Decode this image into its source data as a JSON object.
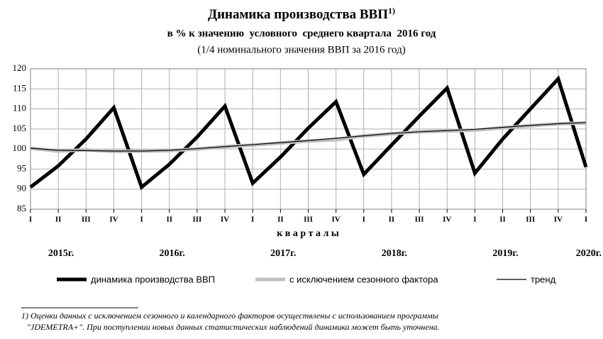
{
  "chart_data": {
    "type": "line",
    "title": "Динамика производства ВВП",
    "title_note": "1)",
    "subtitle": "в % к значению  условного  среднего квартала  2016 год",
    "subtitle2": "(1/4 номинального значения ВВП за 2016 год)",
    "x_label": "к в а р т а л ы",
    "categories": [
      "I",
      "II",
      "III",
      "IV",
      "I",
      "II",
      "III",
      "IV",
      "I",
      "II",
      "III",
      "IV",
      "I",
      "II",
      "III",
      "IV",
      "I",
      "II",
      "III",
      "IV",
      "I"
    ],
    "year_labels": [
      "2015г.",
      "2016г.",
      "2017г.",
      "2018г.",
      "2019г.",
      "2020г."
    ],
    "ylim": [
      85,
      120
    ],
    "yticks": [
      85,
      90,
      95,
      100,
      105,
      110,
      115,
      120
    ],
    "grid": true,
    "legend": "bottom",
    "series": [
      {
        "name": "динамика производства ВВП",
        "color": "#000000",
        "width": 5,
        "values": [
          90.5,
          95.8,
          102.5,
          110.3,
          90.5,
          96.2,
          103.0,
          110.7,
          91.5,
          98.0,
          105.2,
          111.8,
          93.7,
          101.0,
          108.2,
          115.2,
          94.0,
          102.5,
          110.0,
          117.5,
          95.5
        ]
      },
      {
        "name": "с исключением сезонного фактора",
        "color": "#c0c0c0",
        "width": 5,
        "values": [
          100.2,
          99.5,
          99.8,
          99.4,
          99.5,
          99.6,
          100.0,
          100.6,
          101.0,
          101.5,
          102.0,
          102.3,
          103.3,
          103.8,
          104.3,
          104.5,
          104.7,
          105.3,
          105.8,
          106.3,
          106.5
        ]
      },
      {
        "name": "тренд",
        "color": "#000000",
        "width": 1.2,
        "values": [
          100.2,
          99.7,
          99.6,
          99.5,
          99.5,
          99.7,
          100.1,
          100.6,
          101.1,
          101.6,
          102.1,
          102.7,
          103.3,
          103.9,
          104.3,
          104.6,
          104.9,
          105.4,
          105.9,
          106.3,
          106.6
        ]
      }
    ],
    "footnote": [
      "1) Оценки данных  с  исключением сезонного и календарного факторов осуществлены  с  использованием  программы",
      "\"JDEMETRA+\". При поступлении новых данных статистических  наблюдений динамика может быть уточнена."
    ]
  }
}
